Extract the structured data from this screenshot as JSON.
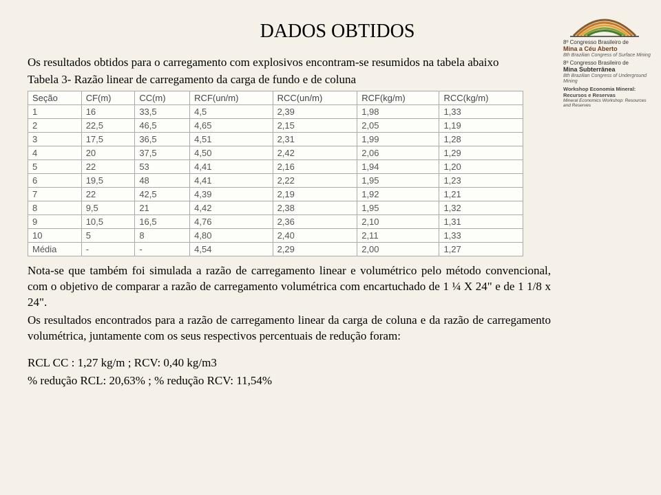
{
  "title": "DADOS OBTIDOS",
  "para1": "Os resultados obtidos  para o carregamento com explosivos encontram-se resumidos na tabela abaixo",
  "caption": "Tabela 3- Razão linear de carregamento da carga de fundo e de coluna",
  "table": {
    "columns": [
      "Seção",
      "CF(m)",
      "CC(m)",
      "RCF(un/m)",
      "RCC(un/m)",
      "RCF(kg/m)",
      "RCC(kg/m)"
    ],
    "rows": [
      [
        "1",
        "16",
        "33,5",
        "4,5",
        "2,39",
        "1,98",
        "1,33"
      ],
      [
        "2",
        "22,5",
        "46,5",
        "4,65",
        "2,15",
        "2,05",
        "1,19"
      ],
      [
        "3",
        "17,5",
        "36,5",
        "4,51",
        "2,31",
        "1,99",
        "1,28"
      ],
      [
        "4",
        "20",
        "37,5",
        "4,50",
        "2,42",
        "2,06",
        "1,29"
      ],
      [
        "5",
        "22",
        "53",
        "4,41",
        "2,16",
        "1,94",
        "1,20"
      ],
      [
        "6",
        "19,5",
        "48",
        "4,41",
        "2,22",
        "1,95",
        "1,23"
      ],
      [
        "7",
        "22",
        "42,5",
        "4,39",
        "2,19",
        "1,92",
        "1,21"
      ],
      [
        "8",
        "9,5",
        "21",
        "4,42",
        "2,38",
        "1,95",
        "1,32"
      ],
      [
        "9",
        "10,5",
        "16,5",
        "4,76",
        "2,36",
        "2,10",
        "1,31"
      ],
      [
        "10",
        "5",
        "8",
        "4,80",
        "2,40",
        "2,11",
        "1,33"
      ],
      [
        "Média",
        "-",
        "-",
        "4,54",
        "2,29",
        "2,00",
        "1,27"
      ]
    ]
  },
  "para2": "Nota-se que também foi simulada a razão de carregamento linear e  volumétrico pelo método convencional, com o objetivo de comparar a razão de carregamento volumétrica com encartuchado de 1 ¼ X 24\" e de 1 1/8 x 24\".",
  "para3": "Os resultados encontrados para a razão de carregamento linear da carga de coluna e da razão de carregamento volumétrica, juntamente com os seus respectivos percentuais de redução foram:",
  "line1": "RCL CC : 1,27 kg/m   ;   RCV: 0,40 kg/m3",
  "line2": "% redução RCL: 20,63% ;   % redução RCV: 11,54%",
  "logo": {
    "t1": "8º Congresso Brasileiro de",
    "t1b": "Mina a Céu Aberto",
    "t1s": "8th Brazilian Congress of Surface Mining",
    "t2": "8º Congresso Brasileiro de",
    "t2b": "Mina Subterrânea",
    "t2s": "8th Brazilian Congress of Underground Mining",
    "t3": "Workshop Economia Mineral: Recursos e Reservas",
    "t3s": "Mineral Economics Workshop: Resources and Reserves"
  }
}
